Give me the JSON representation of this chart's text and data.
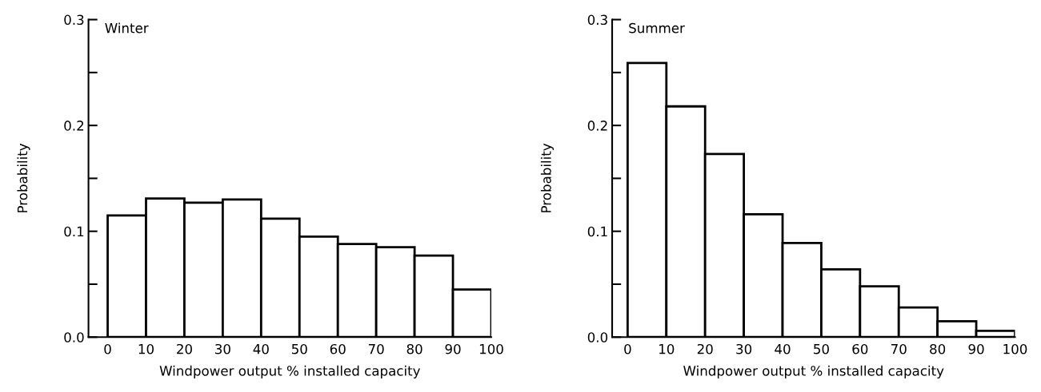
{
  "chart_data": [
    {
      "type": "histogram",
      "title": "Winter",
      "xlabel": "Windpower output % installed capacity",
      "ylabel": "Probability",
      "bins": [
        0,
        10,
        20,
        30,
        40,
        50,
        60,
        70,
        80,
        90,
        100
      ],
      "values": [
        0.115,
        0.131,
        0.127,
        0.13,
        0.112,
        0.095,
        0.088,
        0.085,
        0.077,
        0.045
      ],
      "color": "#ffffff",
      "xlim": [
        -5,
        100
      ],
      "xticks": [
        0,
        10,
        20,
        30,
        40,
        50,
        60,
        70,
        80,
        90,
        100
      ],
      "ylim": [
        0,
        0.3
      ],
      "yticks": [
        {
          "value": 0,
          "label": "0.0"
        },
        {
          "value": 0.05,
          "label": null
        },
        0.1,
        {
          "value": 0.15,
          "label": null
        },
        0.2,
        {
          "value": 0.25,
          "label": null
        },
        0.3
      ],
      "grid": false,
      "legend": false
    },
    {
      "type": "histogram",
      "title": "Summer",
      "xlabel": "Windpower output % installed capacity",
      "ylabel": "Probability",
      "bins": [
        0,
        10,
        20,
        30,
        40,
        50,
        60,
        70,
        80,
        90,
        100
      ],
      "values": [
        0.259,
        0.218,
        0.173,
        0.116,
        0.089,
        0.064,
        0.048,
        0.028,
        0.015,
        0.006
      ],
      "color": "#ffffff",
      "xlim": [
        -4,
        100
      ],
      "xticks": [
        0,
        10,
        20,
        30,
        40,
        50,
        60,
        70,
        80,
        90,
        100
      ],
      "ylim": [
        0,
        0.3
      ],
      "yticks": [
        {
          "value": 0,
          "label": "0.0"
        },
        {
          "value": 0.05,
          "label": null
        },
        0.1,
        {
          "value": 0.15,
          "label": null
        },
        0.2,
        {
          "value": 0.25,
          "label": null
        },
        0.3
      ],
      "grid": false,
      "legend": false
    }
  ]
}
